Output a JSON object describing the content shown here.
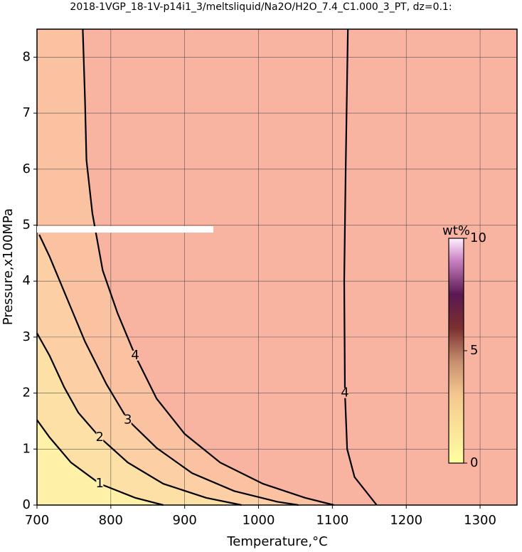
{
  "chart_data": {
    "type": "contour",
    "title": "2018-1VGP_18-1V-p14i1_3/meltsliquid/Na2O/H2O_7.4_C1.000_3_PT, dz=0.1:",
    "x_label": "Temperature,°C",
    "y_label": "Pressure,x100MPa",
    "xlim": [
      700,
      1350
    ],
    "ylim": [
      0,
      8.5
    ],
    "xticks": [
      700,
      800,
      900,
      1000,
      1100,
      1200,
      1300
    ],
    "yticks": [
      0,
      1,
      2,
      3,
      4,
      5,
      6,
      7,
      8
    ],
    "grid": true,
    "background_color": "#f9b3a1",
    "contours": [
      {
        "level": 4,
        "fill": "#fbc2a2",
        "x": [
          762,
          765,
          767,
          775,
          789,
          809,
          833,
          862,
          900,
          948,
          1006,
          1063,
          1102
        ],
        "y": [
          8.5,
          7.24,
          6.16,
          5.21,
          4.19,
          3.43,
          2.67,
          1.9,
          1.27,
          0.76,
          0.38,
          0.13,
          0
        ]
      },
      {
        "level": 3,
        "fill": "#fcd0a4",
        "x": [
          703,
          717,
          741,
          765,
          794,
          823,
          862,
          910,
          967,
          1025,
          1054
        ],
        "y": [
          4.83,
          4.44,
          3.68,
          2.92,
          2.16,
          1.52,
          1.02,
          0.57,
          0.25,
          0.06,
          0
        ]
      },
      {
        "level": 2,
        "fill": "#fde0a6",
        "x": [
          700,
          717,
          737,
          756,
          785,
          823,
          871,
          929,
          977
        ],
        "y": [
          3.07,
          2.67,
          2.1,
          1.65,
          1.21,
          0.76,
          0.38,
          0.13,
          0
        ]
      },
      {
        "level": 1,
        "fill": "#fff2a8",
        "x": [
          700,
          717,
          746,
          785,
          833,
          871
        ],
        "y": [
          1.52,
          1.21,
          0.76,
          0.38,
          0.13,
          0
        ]
      },
      {
        "level": 4,
        "x": [
          1121,
          1118,
          1116,
          1117,
          1120,
          1130,
          1160
        ],
        "y": [
          8.5,
          6,
          4,
          2,
          1,
          0.5,
          0
        ]
      }
    ],
    "colorbar": {
      "label": "wt%",
      "lim": [
        0,
        10
      ],
      "ticks": [
        0,
        5,
        10
      ]
    }
  }
}
